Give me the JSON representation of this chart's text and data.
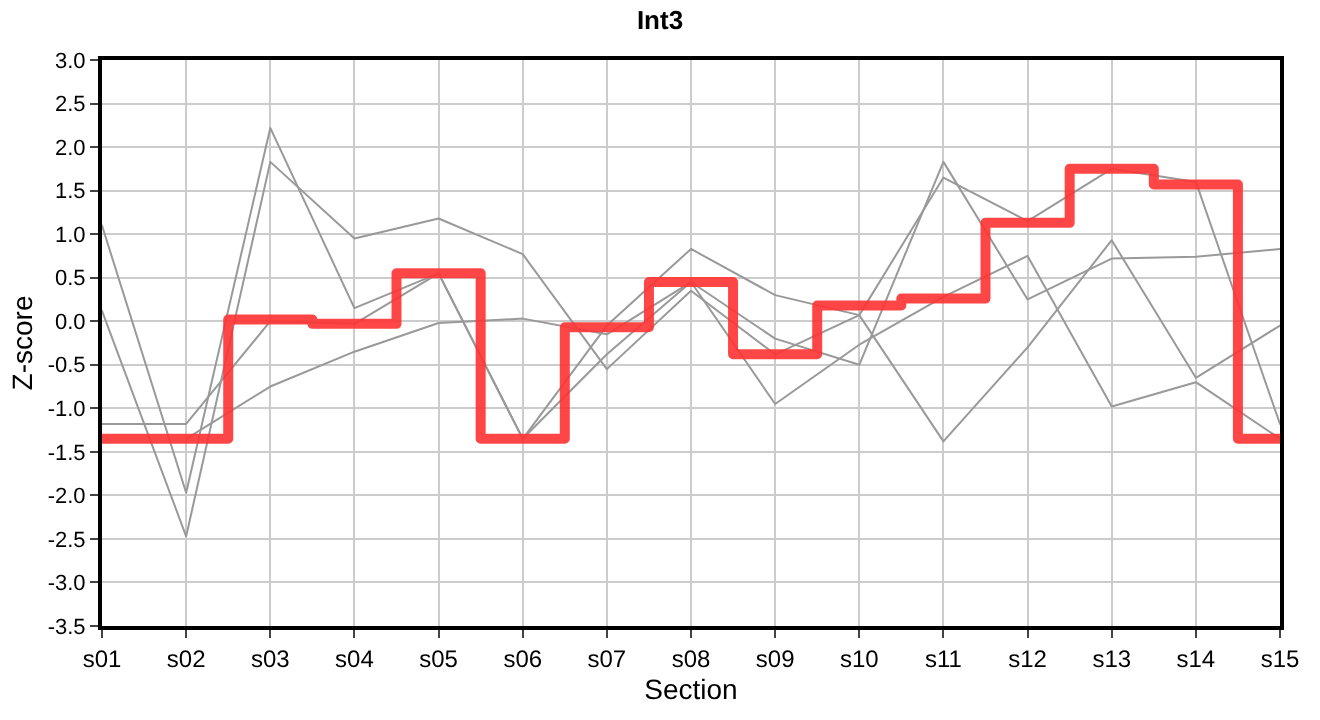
{
  "chart_data": {
    "type": "line",
    "title": "Int3",
    "xlabel": "Section",
    "ylabel": "Z-score",
    "categories": [
      "s01",
      "s02",
      "s03",
      "s04",
      "s05",
      "s06",
      "s07",
      "s08",
      "s09",
      "s10",
      "s11",
      "s12",
      "s13",
      "s14",
      "s15"
    ],
    "series": [
      {
        "color": "#999999",
        "values": [
          1.1,
          -1.97,
          2.22,
          0.15,
          0.55,
          -1.35,
          -0.38,
          0.45,
          -0.2,
          -0.5,
          1.83,
          0.25,
          0.72,
          0.74,
          0.83
        ]
      },
      {
        "color": "#999999",
        "values": [
          0.12,
          -2.47,
          1.83,
          0.95,
          1.18,
          0.77,
          -0.55,
          0.35,
          -0.38,
          0.07,
          1.65,
          1.15,
          1.75,
          1.6,
          -1.18
        ]
      },
      {
        "color": "#999999",
        "values": [
          -1.18,
          -1.18,
          0.0,
          -0.03,
          0.55,
          -1.35,
          -0.05,
          0.83,
          0.3,
          0.07,
          -1.38,
          -0.3,
          0.93,
          -0.65,
          -0.05
        ]
      },
      {
        "color": "#999999",
        "values": [
          null,
          -1.35,
          -0.75,
          -0.35,
          -0.02,
          0.03,
          -0.15,
          0.45,
          -0.95,
          -0.27,
          0.28,
          0.75,
          -0.98,
          -0.7,
          -1.35
        ]
      },
      {
        "type": "step",
        "color": "#ff3333",
        "values": [
          -1.35,
          -1.35,
          0.02,
          -0.03,
          0.55,
          -1.35,
          -0.07,
          0.45,
          -0.38,
          0.18,
          0.26,
          1.13,
          1.75,
          1.57,
          -1.35
        ]
      }
    ],
    "ylim": [
      -3.5,
      3.0
    ],
    "yticks": [
      {
        "value": -3.5,
        "label": "-3.5"
      },
      {
        "value": -3.0,
        "label": "-3.0"
      },
      {
        "value": -2.5,
        "label": "-2.5"
      },
      {
        "value": -2.0,
        "label": "-2.0"
      },
      {
        "value": -1.5,
        "label": "-1.5"
      },
      {
        "value": -1.0,
        "label": "-1.0"
      },
      {
        "value": -0.5,
        "label": "-0.5"
      },
      {
        "value": 0,
        "label": "0.0"
      },
      {
        "value": 0.5,
        "label": "0.5"
      },
      {
        "value": 1.0,
        "label": "1.0"
      },
      {
        "value": 1.5,
        "label": "1.5"
      },
      {
        "value": 2.0,
        "label": "2.0"
      },
      {
        "value": 2.5,
        "label": "2.5"
      },
      {
        "value": 3.0,
        "label": "3.0"
      }
    ],
    "grid": true,
    "marker": "none",
    "line_style": "solid"
  }
}
